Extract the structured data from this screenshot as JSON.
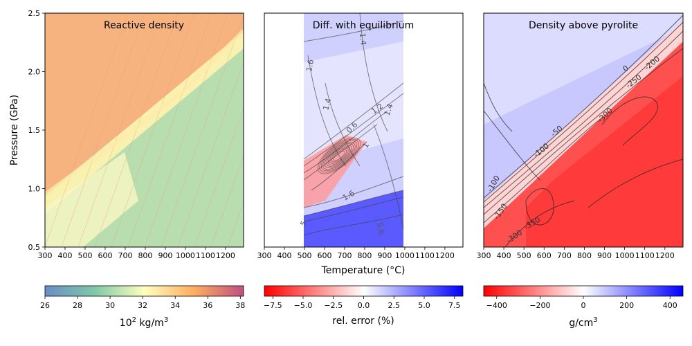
{
  "chart_data": [
    {
      "type": "heatmap",
      "title": "Reactive density",
      "xlabel": "",
      "ylabel": "Pressure (GPa)",
      "xlim": [
        300,
        1290
      ],
      "ylim": [
        0.5,
        2.5
      ],
      "xticks": [
        300,
        400,
        500,
        600,
        700,
        800,
        900,
        1000,
        1100,
        1200
      ],
      "yticks": [
        0.5,
        1.0,
        1.5,
        2.0,
        2.5
      ],
      "ytick_labels": [
        "0.5",
        "1.0",
        "1.5",
        "2.0",
        "2.5"
      ],
      "colorbar": {
        "label": "10",
        "label_sup": "2",
        "label_rest": " kg/m",
        "label_sup2": "3",
        "range": [
          26,
          38.2
        ],
        "ticks": [
          26,
          28,
          30,
          32,
          34,
          36,
          38
        ],
        "colors": [
          "#6a8ec6",
          "#7fc8a8",
          "#ffffbf",
          "#fdae61",
          "#c04f80"
        ]
      },
      "transition_boundary": [
        [
          300,
          0.95
        ],
        [
          700,
          1.45
        ],
        [
          1000,
          1.85
        ],
        [
          1290,
          2.35
        ]
      ]
    },
    {
      "type": "heatmap",
      "title": "Diff. with equilibrium",
      "xlabel": "Temperature (°C)",
      "ylabel": "",
      "xlim": [
        300,
        1290
      ],
      "ylim": [
        0.5,
        2.5
      ],
      "data_xrange": [
        500,
        1000
      ],
      "xticks": [
        300,
        400,
        500,
        600,
        700,
        800,
        900,
        1000,
        1100,
        1200
      ],
      "contour_labels": [
        "1.4",
        "1.6",
        "1.4",
        "1.2",
        "1.4",
        "1",
        "0.6",
        "1.6",
        "5.6",
        "5"
      ],
      "colorbar": {
        "label": "rel. error (%)",
        "range": [
          -8.2,
          8.2
        ],
        "ticks": [
          -7.5,
          -5.0,
          -2.5,
          0.0,
          2.5,
          5.0,
          7.5
        ],
        "tick_labels": [
          "−7.5",
          "−5.0",
          "−2.5",
          "0.0",
          "2.5",
          "5.0",
          "7.5"
        ],
        "colors": [
          "#ff0000",
          "#ffffff",
          "#0000ff"
        ]
      }
    },
    {
      "type": "heatmap",
      "title": "Density above pyrolite",
      "xlabel": "",
      "ylabel": "",
      "xlim": [
        300,
        1290
      ],
      "ylim": [
        0.5,
        2.5
      ],
      "xticks": [
        300,
        400,
        500,
        600,
        700,
        800,
        900,
        1000,
        1100,
        1200
      ],
      "contour_labels": [
        "0",
        "-200",
        "-250",
        "-300",
        "-50",
        "-100",
        "-150",
        "-100",
        "-350",
        "-300"
      ],
      "colorbar": {
        "label": "g/cm",
        "label_sup": "3",
        "range": [
          -460,
          460
        ],
        "ticks": [
          -400,
          -200,
          0,
          200,
          400
        ],
        "tick_labels": [
          "−400",
          "−200",
          "0",
          "200",
          "400"
        ],
        "colors": [
          "#ff0000",
          "#ffffff",
          "#0000ff"
        ]
      }
    }
  ]
}
